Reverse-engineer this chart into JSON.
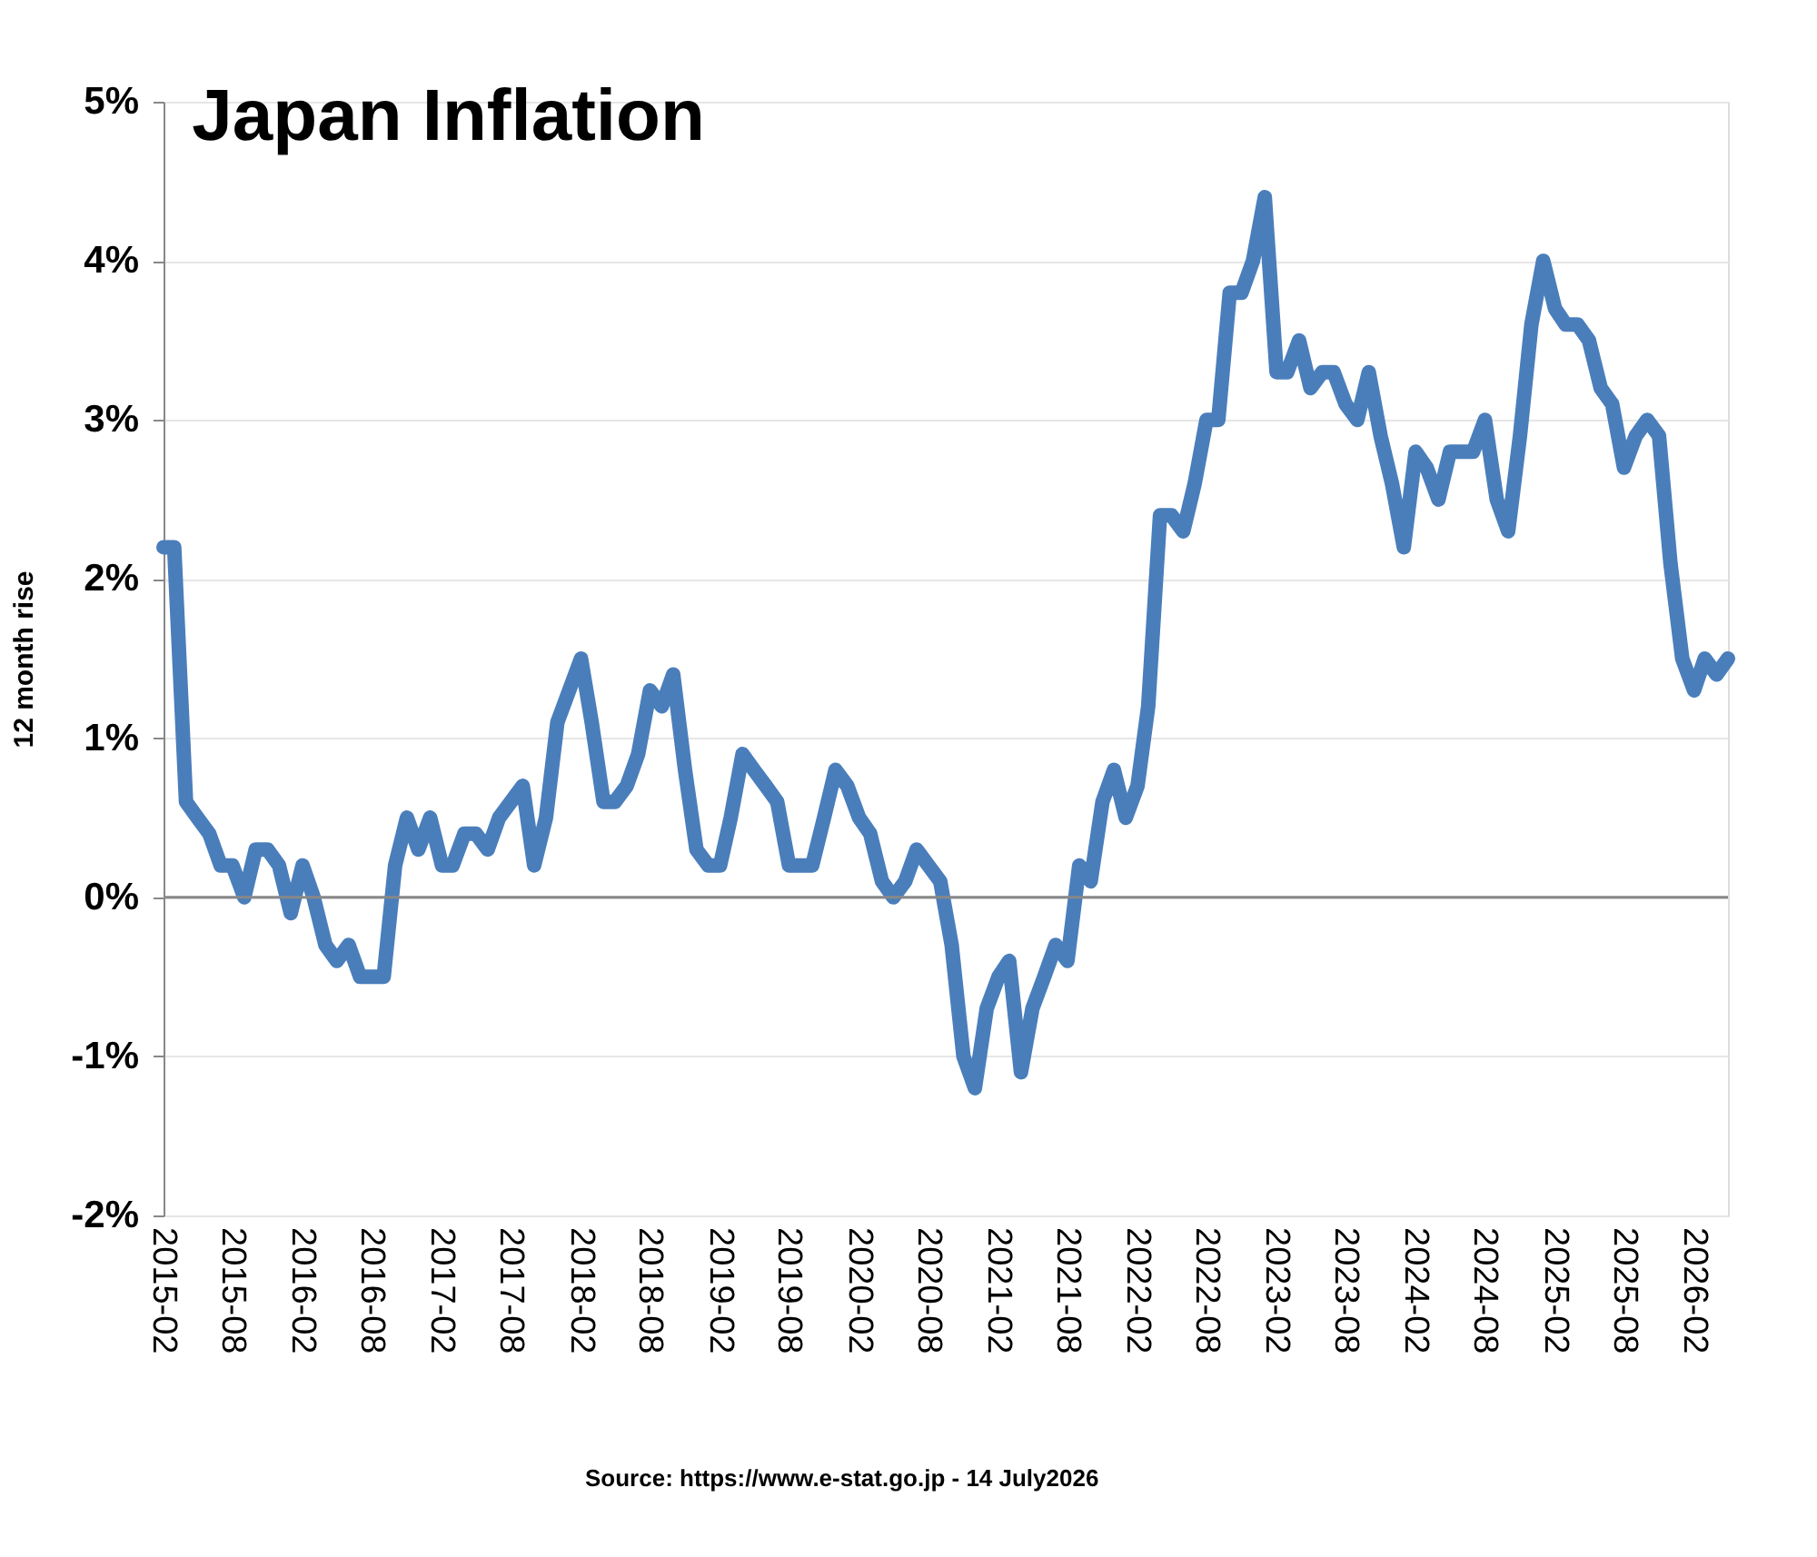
{
  "chart_data": {
    "type": "line",
    "title": "Japan Inflation",
    "ylabel": "12 month rise",
    "annotations": [
      "Source: https://www.e-stat.go.jp - 14 July2026"
    ],
    "x": [
      "2015-02",
      "2015-03",
      "2015-04",
      "2015-05",
      "2015-06",
      "2015-07",
      "2015-08",
      "2015-09",
      "2015-10",
      "2015-11",
      "2015-12",
      "2016-01",
      "2016-02",
      "2016-03",
      "2016-04",
      "2016-05",
      "2016-06",
      "2016-07",
      "2016-08",
      "2016-09",
      "2016-10",
      "2016-11",
      "2016-12",
      "2017-01",
      "2017-02",
      "2017-03",
      "2017-04",
      "2017-05",
      "2017-06",
      "2017-07",
      "2017-08",
      "2017-09",
      "2017-10",
      "2017-11",
      "2017-12",
      "2018-01",
      "2018-02",
      "2018-03",
      "2018-04",
      "2018-05",
      "2018-06",
      "2018-07",
      "2018-08",
      "2018-09",
      "2018-10",
      "2018-11",
      "2018-12",
      "2019-01",
      "2019-02",
      "2019-03",
      "2019-04",
      "2019-05",
      "2019-06",
      "2019-07",
      "2019-08",
      "2019-09",
      "2019-10",
      "2019-11",
      "2019-12",
      "2020-01",
      "2020-02",
      "2020-03",
      "2020-04",
      "2020-05",
      "2020-06",
      "2020-07",
      "2020-08",
      "2020-09",
      "2020-10",
      "2020-11",
      "2020-12",
      "2021-01",
      "2021-02",
      "2021-03",
      "2021-04",
      "2021-05",
      "2021-06",
      "2021-07",
      "2021-08",
      "2021-09",
      "2021-10",
      "2021-11",
      "2021-12",
      "2022-01",
      "2022-02",
      "2022-03",
      "2022-04",
      "2022-05",
      "2022-06",
      "2022-07",
      "2022-08",
      "2022-09",
      "2022-10",
      "2022-11",
      "2022-12",
      "2023-01",
      "2023-02",
      "2023-03",
      "2023-04",
      "2023-05",
      "2023-06",
      "2023-07",
      "2023-08",
      "2023-09",
      "2023-10",
      "2023-11",
      "2023-12",
      "2024-01",
      "2024-02",
      "2024-03",
      "2024-04",
      "2024-05",
      "2024-06",
      "2024-07",
      "2024-08",
      "2024-09",
      "2024-10",
      "2024-11",
      "2024-12",
      "2025-01",
      "2025-02",
      "2025-03",
      "2025-04",
      "2025-05",
      "2025-06",
      "2025-07",
      "2025-08",
      "2025-09",
      "2025-10",
      "2025-11",
      "2025-12",
      "2026-01",
      "2026-02",
      "2026-03",
      "2026-04",
      "2026-05"
    ],
    "series": [
      {
        "color": "#4a7ebb",
        "values": [
          2.2,
          2.2,
          0.6,
          0.5,
          0.4,
          0.2,
          0.2,
          0.0,
          0.3,
          0.3,
          0.2,
          -0.1,
          0.2,
          0.0,
          -0.3,
          -0.4,
          -0.3,
          -0.5,
          -0.5,
          -0.5,
          0.2,
          0.5,
          0.3,
          0.5,
          0.2,
          0.2,
          0.4,
          0.4,
          0.3,
          0.5,
          0.6,
          0.7,
          0.2,
          0.5,
          1.1,
          1.3,
          1.5,
          1.1,
          0.6,
          0.6,
          0.7,
          0.9,
          1.3,
          1.2,
          1.4,
          0.8,
          0.3,
          0.2,
          0.2,
          0.5,
          0.9,
          0.8,
          0.7,
          0.6,
          0.2,
          0.2,
          0.2,
          0.5,
          0.8,
          0.7,
          0.5,
          0.4,
          0.1,
          0.0,
          0.1,
          0.3,
          0.2,
          0.1,
          -0.3,
          -1.0,
          -1.2,
          -0.7,
          -0.5,
          -0.4,
          -1.1,
          -0.7,
          -0.5,
          -0.3,
          -0.4,
          0.2,
          0.1,
          0.6,
          0.8,
          0.5,
          0.7,
          1.2,
          2.4,
          2.4,
          2.3,
          2.6,
          3.0,
          3.0,
          3.8,
          3.8,
          4.0,
          4.4,
          3.3,
          3.3,
          3.5,
          3.2,
          3.3,
          3.3,
          3.1,
          3.0,
          3.3,
          2.9,
          2.6,
          2.2,
          2.8,
          2.7,
          2.5,
          2.8,
          2.8,
          2.8,
          3.0,
          2.5,
          2.3,
          2.9,
          3.6,
          4.0,
          3.7,
          3.6,
          3.6,
          3.5,
          3.2,
          3.1,
          2.7,
          2.9,
          3.0,
          2.9,
          2.1,
          1.5,
          1.3,
          1.5,
          1.4,
          1.5
        ]
      }
    ],
    "xlim": [
      "2015-02",
      "2026-05"
    ],
    "xticks": [
      "2015-02",
      "2015-08",
      "2016-02",
      "2016-08",
      "2017-02",
      "2017-08",
      "2018-02",
      "2018-08",
      "2019-02",
      "2019-08",
      "2020-02",
      "2020-08",
      "2021-02",
      "2021-08",
      "2022-02",
      "2022-08",
      "2023-02",
      "2023-08",
      "2024-02",
      "2024-08",
      "2025-02",
      "2025-08",
      "2026-02"
    ],
    "ylim": [
      -2,
      5
    ],
    "yticks": [
      {
        "value": -2,
        "label": "-2%"
      },
      {
        "value": -1,
        "label": "-1%"
      },
      {
        "value": 0,
        "label": "0%"
      },
      {
        "value": 1,
        "label": "1%"
      },
      {
        "value": 2,
        "label": "2%"
      },
      {
        "value": 3,
        "label": "3%"
      },
      {
        "value": 4,
        "label": "4%"
      },
      {
        "value": 5,
        "label": "5%"
      }
    ],
    "ref_lines": [
      {
        "axis": "y",
        "value": 0,
        "color": "#888888"
      }
    ],
    "grid": "y",
    "marker": "none",
    "line_style": "solid"
  }
}
